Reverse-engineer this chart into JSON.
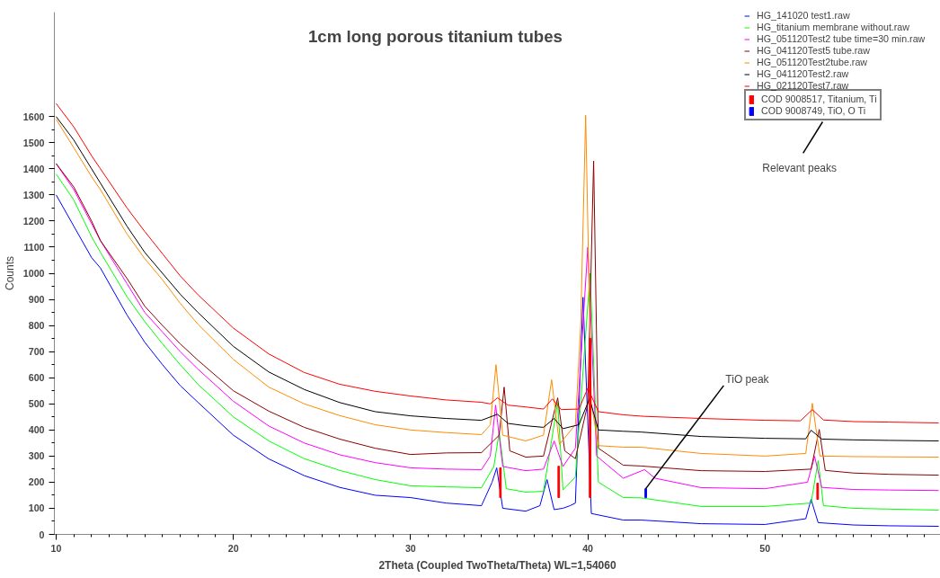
{
  "chart_data": {
    "type": "line",
    "title": "1cm long porous titanium tubes",
    "xlabel": "2Theta (Coupled TwoTheta/Theta) WL=1,54060",
    "ylabel": "Counts",
    "xlim": [
      9.9,
      59.9
    ],
    "ylim": [
      0,
      2000
    ],
    "xticks": [
      10,
      20,
      30,
      40,
      50
    ],
    "yticks": [
      0,
      100,
      200,
      300,
      400,
      500,
      600,
      700,
      800,
      900,
      1000,
      1100,
      1200,
      1300,
      1400,
      1500,
      1600
    ],
    "grid": false,
    "legend": "top right",
    "annotations": [
      "Relevant peaks",
      {
        "text": "TiO peak",
        "x": 43.27,
        "y": 175
      }
    ],
    "series": [
      {
        "name": "HG_141020 test1.raw",
        "color": "#0000ff",
        "x": [
          10,
          11,
          12,
          12.5,
          14,
          15,
          16,
          17,
          18,
          20,
          22,
          24,
          26,
          28,
          30,
          32,
          34,
          34.6,
          34.86,
          35.2,
          36.5,
          37.3,
          37.7,
          38.1,
          38.6,
          39.0,
          39.3,
          39.73,
          40.2,
          42,
          43,
          46.4,
          50,
          52.3,
          52.6,
          53.0,
          55,
          57,
          59.8
        ],
        "values": [
          1300,
          1180,
          1060,
          1020,
          840,
          736,
          650,
          570,
          506,
          380,
          289,
          225,
          180,
          150,
          141,
          120,
          110,
          200,
          255,
          100,
          89,
          110,
          210,
          95,
          100,
          110,
          120,
          908,
          80,
          55,
          55,
          41,
          38,
          60,
          134,
          45,
          36,
          33,
          31
        ]
      },
      {
        "name": "HG_titanium membrane without.raw",
        "color": "#00ff00",
        "x": [
          10,
          11,
          12,
          12.5,
          14,
          15,
          16,
          17,
          18,
          20,
          22,
          24,
          26,
          28,
          30,
          32,
          34,
          34.7,
          35.0,
          35.4,
          36.5,
          37.5,
          38.3,
          38.6,
          39.3,
          40.13,
          40.6,
          42,
          43,
          46.4,
          50,
          52.6,
          53.0,
          53.3,
          55,
          57,
          59.8
        ],
        "values": [
          1380,
          1280,
          1140,
          1080,
          910,
          815,
          730,
          650,
          575,
          450,
          358,
          290,
          245,
          210,
          186,
          182,
          179,
          260,
          392,
          175,
          162,
          165,
          506,
          170,
          220,
          1000,
          200,
          141,
          140,
          107,
          107,
          120,
          282,
          110,
          100,
          97,
          93
        ]
      },
      {
        "name": "HG_051120Test2 tube time=30 min.raw",
        "color": "#ff00ff",
        "x": [
          10,
          11,
          12,
          12.5,
          14,
          15,
          16,
          17,
          18,
          20,
          22,
          24,
          26,
          28,
          30,
          32,
          34,
          34.5,
          34.8,
          35.2,
          36.5,
          37.5,
          38.1,
          38.6,
          39.3,
          40.0,
          40.5,
          42,
          43.2,
          43.8,
          46.4,
          50,
          52.4,
          52.8,
          53.2,
          55,
          57,
          59.8
        ],
        "values": [
          1420,
          1320,
          1190,
          1125,
          960,
          850,
          775,
          700,
          633,
          510,
          415,
          350,
          305,
          275,
          255,
          250,
          248,
          300,
          495,
          260,
          244,
          250,
          358,
          260,
          330,
          1100,
          300,
          215,
          248,
          215,
          179,
          175,
          200,
          299,
          180,
          172,
          170,
          168
        ]
      },
      {
        "name": "HG_041120Test5 tube.raw",
        "color": "#8b0000",
        "x": [
          10,
          11,
          12,
          12.5,
          14,
          15,
          16,
          17,
          18,
          20,
          22,
          24,
          26,
          28,
          30,
          32,
          34,
          35.0,
          35.28,
          35.6,
          36.5,
          37.5,
          38.3,
          38.7,
          39.3,
          40.0,
          40.33,
          40.6,
          42,
          43,
          46.4,
          50,
          52.6,
          53.06,
          53.4,
          55,
          57,
          59.8
        ],
        "values": [
          1420,
          1330,
          1200,
          1125,
          980,
          874,
          800,
          730,
          667,
          550,
          472,
          410,
          365,
          330,
          306,
          312,
          313,
          380,
          564,
          320,
          296,
          300,
          523,
          320,
          290,
          500,
          1430,
          330,
          265,
          262,
          244,
          241,
          250,
          402,
          245,
          235,
          230,
          227
        ]
      },
      {
        "name": "HG_051120Test2tube.raw",
        "color": "#ff8c00",
        "x": [
          10,
          11,
          12,
          12.5,
          14,
          15,
          16,
          17,
          18,
          20,
          22,
          24,
          26,
          28,
          30,
          32,
          34,
          34.5,
          34.82,
          35.2,
          36.5,
          37.5,
          37.96,
          38.4,
          39.3,
          39.6,
          39.88,
          40.2,
          40.6,
          42,
          43,
          46.4,
          50,
          52.3,
          52.67,
          53.1,
          55,
          57,
          59.8
        ],
        "values": [
          1590,
          1480,
          1370,
          1320,
          1150,
          1056,
          975,
          885,
          805,
          670,
          564,
          500,
          455,
          420,
          400,
          390,
          382,
          420,
          650,
          380,
          358,
          380,
          592,
          345,
          420,
          800,
          1605,
          500,
          340,
          334,
          334,
          310,
          300,
          310,
          502,
          300,
          298,
          297,
          296
        ]
      },
      {
        "name": "HG_041120Test2.raw",
        "color": "#000000",
        "x": [
          10,
          11,
          12,
          12.5,
          14,
          15,
          16,
          17,
          18,
          20,
          22,
          24,
          26,
          28,
          30,
          32,
          34,
          34.9,
          35.5,
          36.5,
          37.5,
          38.1,
          38.6,
          39.5,
          40.1,
          40.6,
          42,
          43,
          46.4,
          50,
          52.3,
          52.6,
          53.2,
          55,
          57,
          59.8
        ],
        "values": [
          1600,
          1510,
          1400,
          1345,
          1180,
          1080,
          1000,
          920,
          850,
          720,
          622,
          555,
          505,
          470,
          454,
          444,
          437,
          460,
          425,
          416,
          410,
          444,
          405,
          420,
          520,
          400,
          395,
          392,
          375,
          368,
          366,
          399,
          365,
          362,
          360,
          358
        ]
      },
      {
        "name": "HG_021120Test7.raw",
        "color": "#ff0000",
        "x": [
          10,
          11,
          12,
          12.5,
          14,
          15,
          16,
          17,
          18,
          20,
          22,
          24,
          26,
          28,
          30,
          32,
          34,
          34.5,
          34.9,
          35.5,
          36.5,
          37.5,
          38.0,
          38.5,
          39.5,
          40.0,
          40.6,
          42,
          43.2,
          46.4,
          50,
          52,
          52.67,
          53.3,
          55,
          57,
          59.8
        ],
        "values": [
          1650,
          1560,
          1450,
          1400,
          1250,
          1160,
          1075,
          990,
          918,
          790,
          691,
          620,
          575,
          548,
          530,
          515,
          506,
          500,
          523,
          495,
          488,
          480,
          519,
          478,
          480,
          560,
          470,
          458,
          452,
          444,
          437,
          435,
          478,
          438,
          432,
          430,
          427
        ]
      },
      {
        "name": "COD 9008517, Titanium, Ti",
        "type": "bar",
        "color": "#ff0000",
        "x": [
          35.07,
          38.36,
          40.13,
          52.97
        ],
        "base": [
          141,
          141,
          141,
          134
        ],
        "values": [
          114,
          120,
          610,
          62
        ]
      },
      {
        "name": "COD 9008749, TiO, O Ti",
        "type": "bar",
        "color": "#0000ff",
        "x": [
          43.27
        ],
        "base": [
          141
        ],
        "values": [
          34
        ]
      }
    ]
  }
}
